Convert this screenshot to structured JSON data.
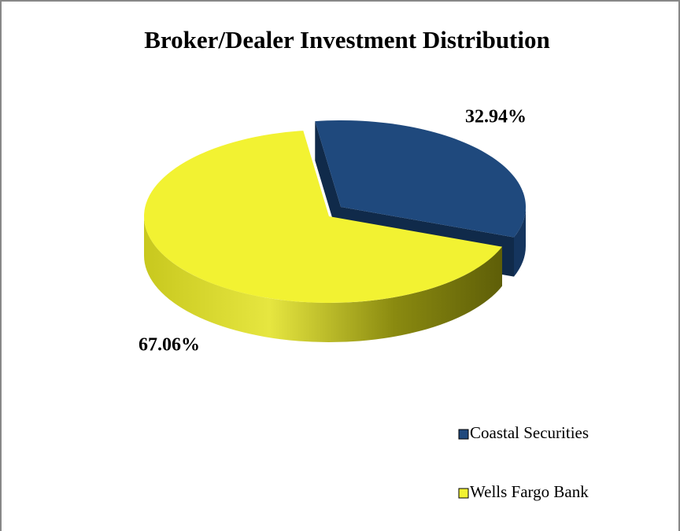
{
  "chart_data": {
    "type": "pie",
    "title": "Broker/Dealer Investment Distribution",
    "categories": [
      "Coastal Securities",
      "Wells Fargo Bank"
    ],
    "values": [
      32.94,
      67.06
    ],
    "value_labels": [
      "32.94%",
      "67.06%"
    ],
    "colors": [
      "#1f497d",
      "#f2f232"
    ],
    "legend": "right"
  }
}
